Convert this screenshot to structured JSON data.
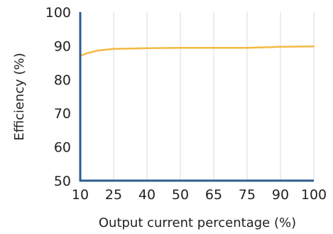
{
  "chart_data": {
    "type": "line",
    "xlabel": "Output current percentage (%)",
    "ylabel": "Efficiency (%)",
    "x_ticks": [
      "10",
      "25",
      "40",
      "50",
      "65",
      "75",
      "90",
      "100"
    ],
    "y_ticks": [
      "50",
      "60",
      "70",
      "80",
      "90",
      "100"
    ],
    "ylim": [
      50,
      100
    ],
    "grid": "vertical",
    "series": [
      {
        "color": "#f5b942",
        "x": [
          10,
          13,
          18,
          25,
          40,
          50,
          65,
          75,
          80,
          90,
          100
        ],
        "y": [
          87.0,
          87.8,
          88.6,
          89.1,
          89.3,
          89.4,
          89.4,
          89.4,
          89.5,
          89.7,
          89.8
        ]
      }
    ]
  },
  "style": {
    "axis_color": "#2e5d8f",
    "grid_color": "#d9d9d9"
  }
}
